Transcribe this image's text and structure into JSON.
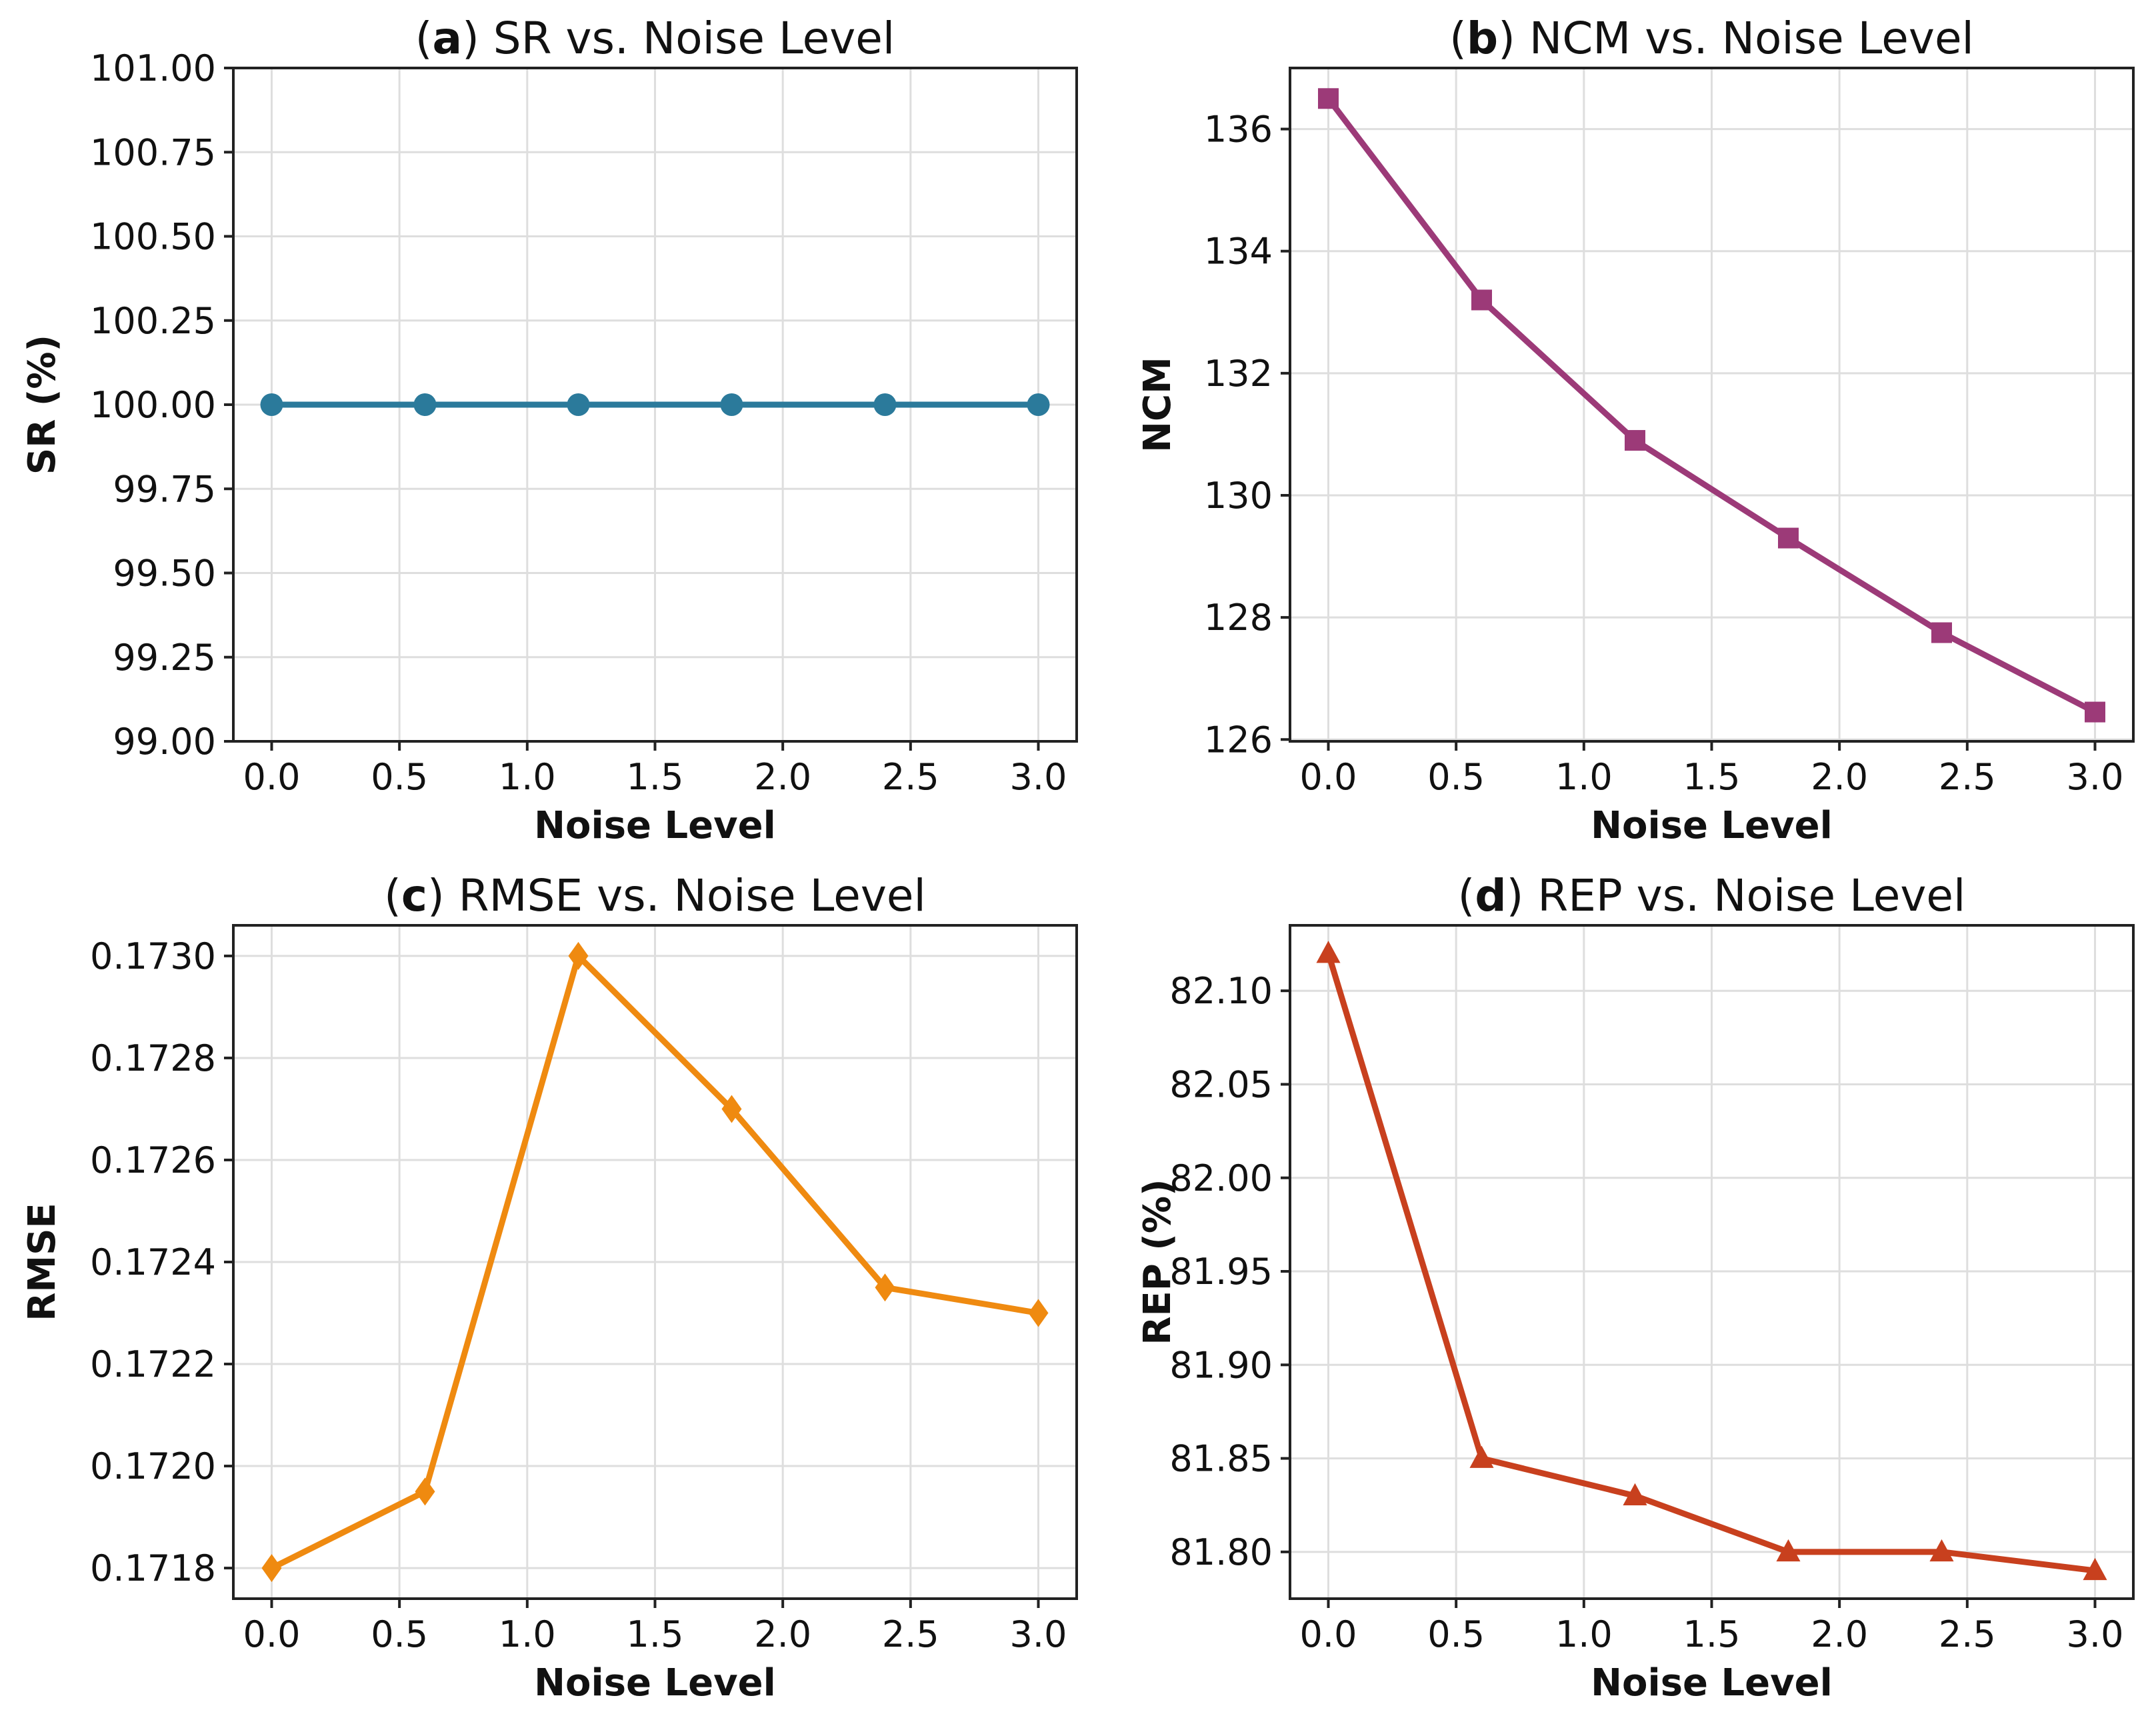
{
  "chart_data": [
    {
      "id": "a",
      "type": "line",
      "title_letter": "a",
      "title_text": "SR vs. Noise Level",
      "xlabel": "Noise Level",
      "ylabel": "SR (%)",
      "x": [
        0.0,
        0.6,
        1.2,
        1.8,
        2.4,
        3.0
      ],
      "values": [
        100.0,
        100.0,
        100.0,
        100.0,
        100.0,
        100.0
      ],
      "xlim": [
        -0.15,
        3.15
      ],
      "ylim": [
        99.0,
        101.0
      ],
      "xticks": [
        0.0,
        0.5,
        1.0,
        1.5,
        2.0,
        2.5,
        3.0
      ],
      "xtick_labels": [
        "0.0",
        "0.5",
        "1.0",
        "1.5",
        "2.0",
        "2.5",
        "3.0"
      ],
      "yticks": [
        99.0,
        99.25,
        99.5,
        99.75,
        100.0,
        100.25,
        100.5,
        100.75,
        101.0
      ],
      "ytick_labels": [
        "99.00",
        "99.25",
        "99.50",
        "99.75",
        "100.00",
        "100.25",
        "100.50",
        "100.75",
        "101.00"
      ],
      "marker": "circle",
      "color": "#2b7a9b",
      "grid": true
    },
    {
      "id": "b",
      "type": "line",
      "title_letter": "b",
      "title_text": "NCM vs. Noise Level",
      "xlabel": "Noise Level",
      "ylabel": "NCM",
      "x": [
        0.0,
        0.6,
        1.2,
        1.8,
        2.4,
        3.0
      ],
      "values": [
        136.5,
        133.2,
        130.9,
        129.3,
        127.75,
        126.45
      ],
      "xlim": [
        -0.15,
        3.15
      ],
      "ylim": [
        125.97,
        137.0
      ],
      "xticks": [
        0.0,
        0.5,
        1.0,
        1.5,
        2.0,
        2.5,
        3.0
      ],
      "xtick_labels": [
        "0.0",
        "0.5",
        "1.0",
        "1.5",
        "2.0",
        "2.5",
        "3.0"
      ],
      "yticks": [
        126,
        128,
        130,
        132,
        134,
        136
      ],
      "ytick_labels": [
        "126",
        "128",
        "130",
        "132",
        "134",
        "136"
      ],
      "marker": "square",
      "color": "#9c3a78",
      "grid": true
    },
    {
      "id": "c",
      "type": "line",
      "title_letter": "c",
      "title_text": "RMSE vs. Noise Level",
      "xlabel": "Noise Level",
      "ylabel": "RMSE",
      "x": [
        0.0,
        0.6,
        1.2,
        1.8,
        2.4,
        3.0
      ],
      "values": [
        0.1718,
        0.17195,
        0.173,
        0.1727,
        0.17235,
        0.1723
      ],
      "xlim": [
        -0.15,
        3.15
      ],
      "ylim": [
        0.17174,
        0.17306
      ],
      "xticks": [
        0.0,
        0.5,
        1.0,
        1.5,
        2.0,
        2.5,
        3.0
      ],
      "xtick_labels": [
        "0.0",
        "0.5",
        "1.0",
        "1.5",
        "2.0",
        "2.5",
        "3.0"
      ],
      "yticks": [
        0.1718,
        0.172,
        0.1722,
        0.1724,
        0.1726,
        0.1728,
        0.173
      ],
      "ytick_labels": [
        "0.1718",
        "0.1720",
        "0.1722",
        "0.1724",
        "0.1726",
        "0.1728",
        "0.1730"
      ],
      "marker": "diamond",
      "color": "#ef8a10",
      "grid": true
    },
    {
      "id": "d",
      "type": "line",
      "title_letter": "d",
      "title_text": "REP vs. Noise Level",
      "xlabel": "Noise Level",
      "ylabel": "REP (%)",
      "x": [
        0.0,
        0.6,
        1.2,
        1.8,
        2.4,
        3.0
      ],
      "values": [
        82.12,
        81.85,
        81.83,
        81.8,
        81.8,
        81.79
      ],
      "xlim": [
        -0.15,
        3.15
      ],
      "ylim": [
        81.775,
        82.135
      ],
      "xticks": [
        0.0,
        0.5,
        1.0,
        1.5,
        2.0,
        2.5,
        3.0
      ],
      "xtick_labels": [
        "0.0",
        "0.5",
        "1.0",
        "1.5",
        "2.0",
        "2.5",
        "3.0"
      ],
      "yticks": [
        81.8,
        81.85,
        81.9,
        81.95,
        82.0,
        82.05,
        82.1
      ],
      "ytick_labels": [
        "81.80",
        "81.85",
        "81.90",
        "81.95",
        "82.00",
        "82.05",
        "82.10"
      ],
      "marker": "triangle",
      "color": "#c8401e",
      "grid": true
    }
  ]
}
